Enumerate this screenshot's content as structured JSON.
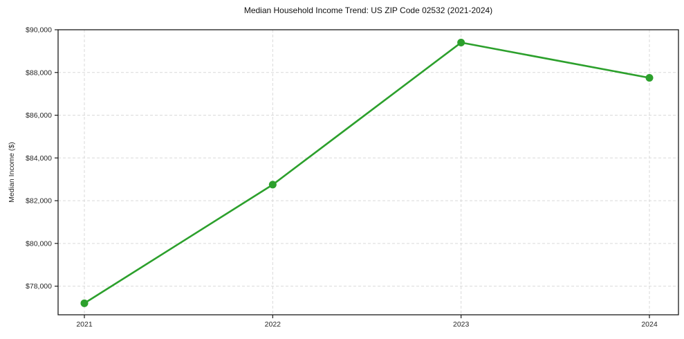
{
  "chart_data": {
    "type": "line",
    "title": "Median Household Income Trend: US ZIP Code 02532 (2021-2024)",
    "xlabel": "",
    "ylabel": "Median Income ($)",
    "categories": [
      "2021",
      "2022",
      "2023",
      "2024"
    ],
    "series": [
      {
        "name": "Median Household Income",
        "values": [
          77200,
          82750,
          89400,
          87750
        ]
      }
    ],
    "ylim": [
      76660,
      90000
    ],
    "yticks": [
      78000,
      80000,
      82000,
      84000,
      86000,
      88000,
      90000
    ],
    "ytick_labels": [
      "$78,000",
      "$80,000",
      "$82,000",
      "$84,000",
      "$86,000",
      "$88,000",
      "$90,000"
    ],
    "grid": true,
    "grid_style": "dashed",
    "legend_position": "none",
    "colors": {
      "line": "#2ca02c",
      "marker": "#2ca02c",
      "grid": "#d9d9d9",
      "spine": "#1a1a1a",
      "tick_text": "#262626",
      "title_text": "#111111",
      "background": "#ffffff"
    }
  }
}
